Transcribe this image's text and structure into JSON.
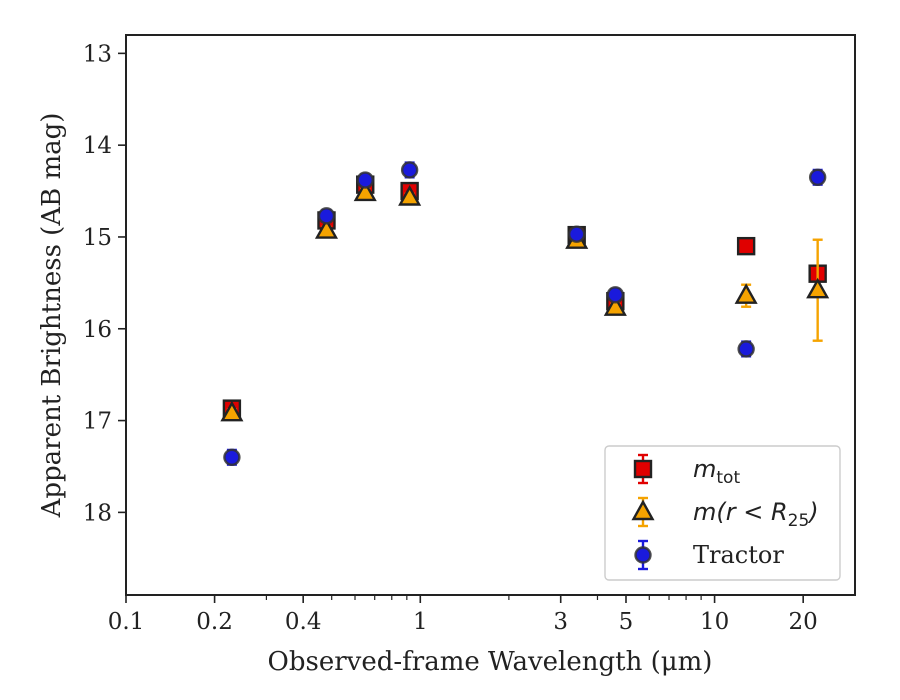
{
  "chart_data": {
    "type": "scatter",
    "title": "",
    "xlabel": "Observed-frame Wavelength (μm)",
    "ylabel": "Apparent Brightness (AB mag)",
    "xscale": "log",
    "xlim": [
      0.1,
      30
    ],
    "ylim": [
      18.9,
      12.8
    ],
    "y_inverted": true,
    "xticks": [
      0.1,
      0.2,
      0.4,
      1,
      3,
      5,
      10,
      20
    ],
    "xtick_labels": [
      "0.1",
      "0.2",
      "0.4",
      "1",
      "3",
      "5",
      "10",
      "20"
    ],
    "yticks": [
      13,
      14,
      15,
      16,
      17,
      18
    ],
    "ytick_labels": [
      "13",
      "14",
      "15",
      "16",
      "17",
      "18"
    ],
    "grid": false,
    "legend_position": "bottom-right",
    "series": [
      {
        "name": "m_tot",
        "label_main": "m",
        "label_sub": "tot",
        "marker": "square",
        "color": "#e00000",
        "points": [
          {
            "x": 0.229,
            "y": 16.87,
            "err": 0.05
          },
          {
            "x": 0.48,
            "y": 14.82,
            "err": 0.05
          },
          {
            "x": 0.65,
            "y": 14.43,
            "err": 0.05
          },
          {
            "x": 0.92,
            "y": 14.5,
            "err": 0.05
          },
          {
            "x": 3.4,
            "y": 14.98,
            "err": 0.04
          },
          {
            "x": 4.6,
            "y": 15.7,
            "err": 0.04
          },
          {
            "x": 12.8,
            "y": 15.1,
            "err": 0.05
          },
          {
            "x": 22.4,
            "y": 15.4,
            "err": 0.05
          }
        ]
      },
      {
        "name": "m(r < R25)",
        "label_main": "m(r < R",
        "label_sub": "25",
        "label_end": ")",
        "marker": "triangle",
        "color": "#f5a300",
        "points": [
          {
            "x": 0.229,
            "y": 16.92,
            "err": 0.04
          },
          {
            "x": 0.48,
            "y": 14.93,
            "err": 0.04
          },
          {
            "x": 0.65,
            "y": 14.52,
            "err": 0.04
          },
          {
            "x": 0.92,
            "y": 14.57,
            "err": 0.04
          },
          {
            "x": 3.4,
            "y": 15.04,
            "err": 0.04
          },
          {
            "x": 4.6,
            "y": 15.77,
            "err": 0.04
          },
          {
            "x": 12.8,
            "y": 15.64,
            "err": 0.12
          },
          {
            "x": 22.4,
            "y": 15.58,
            "err": 0.55
          }
        ]
      },
      {
        "name": "Tractor",
        "label_main": "Tractor",
        "marker": "circle",
        "color": "#1a1adc",
        "points": [
          {
            "x": 0.229,
            "y": 17.4,
            "err": 0.08
          },
          {
            "x": 0.48,
            "y": 14.77,
            "err": 0.06
          },
          {
            "x": 0.65,
            "y": 14.38,
            "err": 0.06
          },
          {
            "x": 0.92,
            "y": 14.27,
            "err": 0.08
          },
          {
            "x": 3.4,
            "y": 14.97,
            "err": 0.05
          },
          {
            "x": 4.6,
            "y": 15.63,
            "err": 0.06
          },
          {
            "x": 12.8,
            "y": 16.22,
            "err": 0.08
          },
          {
            "x": 22.4,
            "y": 14.35,
            "err": 0.08
          }
        ]
      }
    ]
  }
}
